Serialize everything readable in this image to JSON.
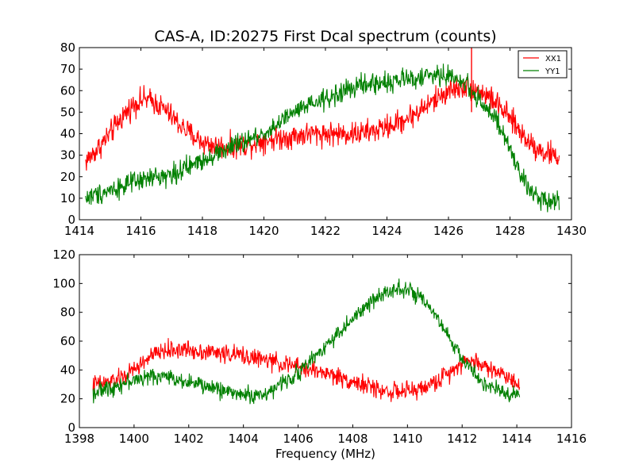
{
  "chart_data": [
    {
      "type": "line",
      "title": "CAS-A, ID:20275 First Dcal spectrum (counts)",
      "xlabel": "",
      "ylabel": "",
      "xlim": [
        1414,
        1430
      ],
      "ylim": [
        0,
        80
      ],
      "xticks": [
        1414,
        1416,
        1418,
        1420,
        1422,
        1424,
        1426,
        1428,
        1430
      ],
      "yticks": [
        0,
        10,
        20,
        30,
        40,
        50,
        60,
        70,
        80
      ],
      "legend": "top-right",
      "grid": false,
      "series": [
        {
          "name": "XX1",
          "color": "#ff0000",
          "noise": 4,
          "x": [
            1414.2,
            1414.6,
            1415.0,
            1415.4,
            1415.8,
            1416.1,
            1416.4,
            1416.8,
            1417.2,
            1417.6,
            1418.0,
            1418.5,
            1419.0,
            1419.5,
            1420.0,
            1420.5,
            1421.0,
            1421.5,
            1422.0,
            1422.5,
            1423.0,
            1423.5,
            1424.0,
            1424.5,
            1425.0,
            1425.5,
            1426.0,
            1426.5,
            1427.0,
            1427.5,
            1428.0,
            1428.5,
            1429.0,
            1429.6
          ],
          "y": [
            27,
            33,
            40,
            48,
            54,
            56,
            55,
            51,
            45,
            40,
            36,
            34,
            34,
            35,
            37,
            38,
            39,
            40,
            40,
            40,
            40,
            41,
            43,
            46,
            50,
            55,
            60,
            62,
            60,
            55,
            47,
            38,
            32,
            29
          ]
        },
        {
          "name": "YY1",
          "color": "#008000",
          "noise": 3.5,
          "x": [
            1414.2,
            1414.6,
            1415.0,
            1415.5,
            1416.0,
            1416.5,
            1417.0,
            1417.5,
            1418.0,
            1418.5,
            1419.0,
            1419.5,
            1420.0,
            1420.5,
            1421.0,
            1421.5,
            1422.0,
            1422.5,
            1423.0,
            1423.5,
            1424.0,
            1424.5,
            1425.0,
            1425.5,
            1426.0,
            1426.5,
            1427.0,
            1427.5,
            1428.0,
            1428.3,
            1428.6,
            1429.0,
            1429.6
          ],
          "y": [
            10,
            12,
            14,
            16,
            18,
            20,
            21,
            24,
            28,
            31,
            34,
            37,
            40,
            45,
            50,
            53,
            56,
            59,
            62,
            63,
            64,
            65,
            66,
            67,
            67,
            64,
            56,
            47,
            33,
            22,
            14,
            10,
            9
          ]
        }
      ]
    },
    {
      "type": "line",
      "title": "",
      "xlabel": "Frequency (MHz)",
      "ylabel": "",
      "xlim": [
        1398,
        1416
      ],
      "ylim": [
        0,
        120
      ],
      "xticks": [
        1398,
        1400,
        1402,
        1404,
        1406,
        1408,
        1410,
        1412,
        1414,
        1416
      ],
      "yticks": [
        0,
        20,
        40,
        60,
        80,
        100,
        120
      ],
      "legend": "none",
      "grid": false,
      "series": [
        {
          "color": "#ff0000",
          "noise": 4.5,
          "x": [
            1398.5,
            1399.0,
            1399.5,
            1400.0,
            1400.5,
            1401.0,
            1401.5,
            1402.0,
            1402.5,
            1403.0,
            1403.5,
            1404.0,
            1404.5,
            1405.0,
            1405.5,
            1406.0,
            1406.5,
            1407.0,
            1407.5,
            1408.0,
            1408.5,
            1409.0,
            1409.5,
            1410.0,
            1410.5,
            1411.0,
            1411.5,
            1412.0,
            1412.5,
            1413.0,
            1413.5,
            1414.1
          ],
          "y": [
            30,
            31,
            34,
            40,
            48,
            53,
            54,
            54,
            53,
            52,
            51,
            50,
            48,
            46,
            44,
            42,
            40,
            38,
            35,
            32,
            29,
            26,
            25,
            25,
            27,
            31,
            38,
            46,
            46,
            41,
            37,
            31
          ]
        },
        {
          "color": "#008000",
          "noise": 4,
          "x": [
            1398.5,
            1399.0,
            1399.5,
            1400.0,
            1400.5,
            1401.0,
            1401.5,
            1402.0,
            1402.5,
            1403.0,
            1403.5,
            1404.0,
            1404.5,
            1405.0,
            1405.5,
            1406.0,
            1406.5,
            1407.0,
            1407.5,
            1408.0,
            1408.5,
            1409.0,
            1409.5,
            1410.0,
            1410.5,
            1411.0,
            1411.5,
            1412.0,
            1412.5,
            1413.0,
            1413.5,
            1414.1
          ],
          "y": [
            24,
            27,
            30,
            33,
            35,
            36,
            34,
            32,
            29,
            27,
            25,
            23,
            22,
            25,
            32,
            38,
            47,
            57,
            66,
            75,
            84,
            92,
            97,
            96,
            89,
            78,
            63,
            48,
            36,
            28,
            24,
            23
          ]
        }
      ]
    }
  ]
}
